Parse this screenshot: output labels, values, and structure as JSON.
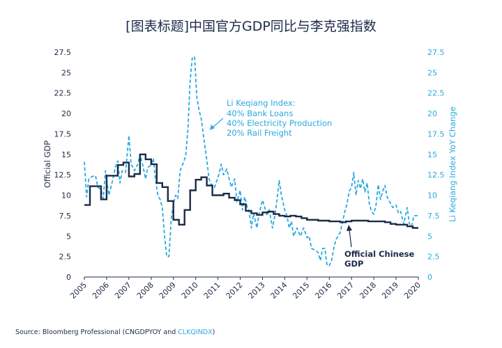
{
  "chart_data": {
    "type": "line",
    "title": "[图表标题]中国官方GDP同比与李克强指数",
    "ylabel_left": "Official GDP",
    "ylabel_right": "Li Keqiang Index YoY Change",
    "ylim": [
      0,
      27.5
    ],
    "y_ticks": [
      "0",
      "2.5",
      "5",
      "7.5",
      "10",
      "12.5",
      "15",
      "17.5",
      "20",
      "22.5",
      "25",
      "27.5"
    ],
    "xlim": [
      2005,
      2020
    ],
    "x_ticks": [
      "2005",
      "2006",
      "2007",
      "2008",
      "2009",
      "2010",
      "2011",
      "2012",
      "2013",
      "2014",
      "2015",
      "2016",
      "2017",
      "2018",
      "2019",
      "2020"
    ],
    "series": [
      {
        "name": "Official Chinese GDP",
        "color": "#1b2a47",
        "style": "step",
        "points": [
          [
            2005.0,
            8.8
          ],
          [
            2005.25,
            11.1
          ],
          [
            2005.75,
            11.1
          ],
          [
            2005.75,
            9.5
          ],
          [
            2006.0,
            12.4
          ],
          [
            2006.5,
            13.7
          ],
          [
            2006.75,
            14.0
          ],
          [
            2007.0,
            12.3
          ],
          [
            2007.25,
            12.6
          ],
          [
            2007.5,
            15.0
          ],
          [
            2007.75,
            14.4
          ],
          [
            2008.0,
            13.8
          ],
          [
            2008.25,
            11.5
          ],
          [
            2008.5,
            11.0
          ],
          [
            2008.75,
            9.3
          ],
          [
            2009.0,
            7.0
          ],
          [
            2009.25,
            6.4
          ],
          [
            2009.5,
            8.2
          ],
          [
            2009.75,
            10.6
          ],
          [
            2010.0,
            11.9
          ],
          [
            2010.25,
            12.2
          ],
          [
            2010.5,
            11.2
          ],
          [
            2010.75,
            10.0
          ],
          [
            2011.0,
            10.0
          ],
          [
            2011.25,
            10.2
          ],
          [
            2011.5,
            9.7
          ],
          [
            2011.75,
            9.4
          ],
          [
            2012.0,
            8.9
          ],
          [
            2012.25,
            8.1
          ],
          [
            2012.5,
            7.8
          ],
          [
            2012.75,
            7.6
          ],
          [
            2013.0,
            7.9
          ],
          [
            2013.25,
            8.0
          ],
          [
            2013.5,
            7.7
          ],
          [
            2013.75,
            7.5
          ],
          [
            2014.0,
            7.4
          ],
          [
            2014.25,
            7.5
          ],
          [
            2014.5,
            7.4
          ],
          [
            2014.75,
            7.2
          ],
          [
            2015.0,
            7.0
          ],
          [
            2015.5,
            6.9
          ],
          [
            2016.0,
            6.8
          ],
          [
            2016.5,
            6.7
          ],
          [
            2016.75,
            6.8
          ],
          [
            2017.0,
            6.9
          ],
          [
            2017.75,
            6.8
          ],
          [
            2018.25,
            6.8
          ],
          [
            2018.5,
            6.7
          ],
          [
            2018.75,
            6.5
          ],
          [
            2019.0,
            6.4
          ],
          [
            2019.5,
            6.2
          ],
          [
            2019.75,
            6.0
          ],
          [
            2020.0,
            6.0
          ]
        ]
      },
      {
        "name": "Li Keqiang Index",
        "color": "#2aa9e0",
        "style": "dashed",
        "points": [
          [
            2005.0,
            14.1
          ],
          [
            2005.1,
            9.8
          ],
          [
            2005.2,
            12.0
          ],
          [
            2005.35,
            12.3
          ],
          [
            2005.5,
            12.4
          ],
          [
            2005.6,
            11.0
          ],
          [
            2005.75,
            10.7
          ],
          [
            2005.85,
            9.6
          ],
          [
            2005.95,
            13.0
          ],
          [
            2006.1,
            10.0
          ],
          [
            2006.25,
            11.6
          ],
          [
            2006.4,
            13.5
          ],
          [
            2006.5,
            14.2
          ],
          [
            2006.6,
            11.5
          ],
          [
            2006.7,
            13.0
          ],
          [
            2006.85,
            12.8
          ],
          [
            2007.0,
            17.3
          ],
          [
            2007.1,
            13.8
          ],
          [
            2007.25,
            13.0
          ],
          [
            2007.4,
            13.8
          ],
          [
            2007.5,
            15.0
          ],
          [
            2007.6,
            14.0
          ],
          [
            2007.75,
            12.0
          ],
          [
            2007.85,
            13.4
          ],
          [
            2008.0,
            13.7
          ],
          [
            2008.1,
            14.5
          ],
          [
            2008.2,
            11.8
          ],
          [
            2008.3,
            10.0
          ],
          [
            2008.4,
            9.5
          ],
          [
            2008.5,
            8.5
          ],
          [
            2008.6,
            5.0
          ],
          [
            2008.7,
            2.5
          ],
          [
            2008.8,
            2.5
          ],
          [
            2008.9,
            7.0
          ],
          [
            2009.0,
            9.0
          ],
          [
            2009.1,
            10.0
          ],
          [
            2009.2,
            9.6
          ],
          [
            2009.3,
            13.0
          ],
          [
            2009.45,
            14.0
          ],
          [
            2009.55,
            14.8
          ],
          [
            2009.65,
            18.0
          ],
          [
            2009.75,
            24.0
          ],
          [
            2009.85,
            26.9
          ],
          [
            2009.95,
            26.9
          ],
          [
            2010.05,
            22.0
          ],
          [
            2010.15,
            20.4
          ],
          [
            2010.25,
            19.4
          ],
          [
            2010.35,
            17.3
          ],
          [
            2010.5,
            14.3
          ],
          [
            2010.6,
            12.0
          ],
          [
            2010.75,
            11.0
          ],
          [
            2010.85,
            11.0
          ],
          [
            2010.95,
            11.8
          ],
          [
            2011.05,
            12.6
          ],
          [
            2011.15,
            13.8
          ],
          [
            2011.25,
            12.5
          ],
          [
            2011.4,
            13.2
          ],
          [
            2011.5,
            12.0
          ],
          [
            2011.6,
            11.0
          ],
          [
            2011.75,
            12.0
          ],
          [
            2011.85,
            9.2
          ],
          [
            2012.0,
            10.6
          ],
          [
            2012.1,
            8.2
          ],
          [
            2012.2,
            9.8
          ],
          [
            2012.3,
            8.7
          ],
          [
            2012.4,
            8.0
          ],
          [
            2012.5,
            6.0
          ],
          [
            2012.6,
            7.8
          ],
          [
            2012.75,
            6.0
          ],
          [
            2012.85,
            7.8
          ],
          [
            2013.0,
            9.4
          ],
          [
            2013.1,
            8.5
          ],
          [
            2013.2,
            7.5
          ],
          [
            2013.3,
            8.3
          ],
          [
            2013.45,
            6.0
          ],
          [
            2013.55,
            7.4
          ],
          [
            2013.65,
            9.4
          ],
          [
            2013.75,
            11.8
          ],
          [
            2013.85,
            10.0
          ],
          [
            2014.0,
            8.2
          ],
          [
            2014.1,
            7.5
          ],
          [
            2014.2,
            6.0
          ],
          [
            2014.3,
            6.8
          ],
          [
            2014.4,
            5.0
          ],
          [
            2014.55,
            6.0
          ],
          [
            2014.7,
            5.0
          ],
          [
            2014.85,
            6.0
          ],
          [
            2015.0,
            4.8
          ],
          [
            2015.1,
            5.0
          ],
          [
            2015.2,
            3.5
          ],
          [
            2015.35,
            3.3
          ],
          [
            2015.5,
            3.0
          ],
          [
            2015.6,
            2.0
          ],
          [
            2015.7,
            3.5
          ],
          [
            2015.8,
            3.5
          ],
          [
            2015.9,
            1.4
          ],
          [
            2016.0,
            1.4
          ],
          [
            2016.1,
            2.0
          ],
          [
            2016.2,
            3.5
          ],
          [
            2016.3,
            4.6
          ],
          [
            2016.4,
            5.0
          ],
          [
            2016.5,
            5.5
          ],
          [
            2016.6,
            6.8
          ],
          [
            2016.7,
            8.0
          ],
          [
            2016.8,
            9.0
          ],
          [
            2016.9,
            10.5
          ],
          [
            2017.0,
            11.0
          ],
          [
            2017.1,
            12.8
          ],
          [
            2017.2,
            10.0
          ],
          [
            2017.3,
            11.8
          ],
          [
            2017.4,
            10.8
          ],
          [
            2017.5,
            12.0
          ],
          [
            2017.6,
            10.4
          ],
          [
            2017.7,
            11.5
          ],
          [
            2017.8,
            9.0
          ],
          [
            2017.9,
            8.0
          ],
          [
            2018.0,
            7.7
          ],
          [
            2018.1,
            8.8
          ],
          [
            2018.2,
            11.3
          ],
          [
            2018.3,
            9.5
          ],
          [
            2018.4,
            10.5
          ],
          [
            2018.5,
            11.2
          ],
          [
            2018.6,
            9.8
          ],
          [
            2018.75,
            9.0
          ],
          [
            2018.85,
            8.5
          ],
          [
            2019.0,
            8.8
          ],
          [
            2019.1,
            7.8
          ],
          [
            2019.2,
            8.0
          ],
          [
            2019.35,
            6.5
          ],
          [
            2019.5,
            8.5
          ],
          [
            2019.6,
            6.5
          ],
          [
            2019.7,
            6.2
          ],
          [
            2019.8,
            7.5
          ],
          [
            2019.9,
            7.5
          ],
          [
            2020.0,
            7.5
          ]
        ]
      }
    ],
    "annotations": [
      {
        "lines": [
          "Li Keqiang Index:",
          "40% Bank Loans",
          "40% Electricity Production",
          "20% Rail Freight"
        ],
        "color": "#2aa9e0"
      },
      {
        "lines": [
          "Official Chinese",
          "GDP"
        ],
        "color": "#1b2a47"
      }
    ],
    "source": {
      "prefix": "Source: Bloomberg Professional (CNGDPYOY and ",
      "highlight": "CLKQINDX",
      "suffix": ")"
    },
    "grid": false,
    "legend": "none"
  }
}
